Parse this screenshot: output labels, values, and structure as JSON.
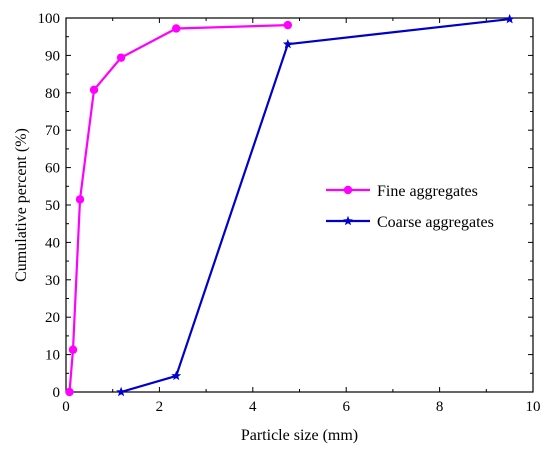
{
  "chart_data": {
    "type": "line",
    "xlabel": "Particle size (mm)",
    "ylabel": "Cumulative percent (%)",
    "xlim": [
      0,
      10
    ],
    "ylim": [
      0,
      100
    ],
    "xticks": [
      0,
      2,
      4,
      6,
      8,
      10
    ],
    "yticks": [
      0,
      10,
      20,
      30,
      40,
      50,
      60,
      70,
      80,
      90,
      100
    ],
    "grid": false,
    "legend_position": "center-right",
    "series": [
      {
        "name": "Fine aggregates",
        "color": "#ff00ff",
        "marker": "circle",
        "x": [
          0.075,
          0.15,
          0.3,
          0.6,
          1.18,
          2.36,
          4.75
        ],
        "y": [
          0,
          11.3,
          51.5,
          80.8,
          89.4,
          97.2,
          98.1
        ]
      },
      {
        "name": "Coarse aggregates",
        "color": "#0000cc",
        "marker": "star",
        "x": [
          1.18,
          2.36,
          4.75,
          9.5
        ],
        "y": [
          0,
          4.3,
          93.0,
          99.7
        ]
      }
    ]
  }
}
